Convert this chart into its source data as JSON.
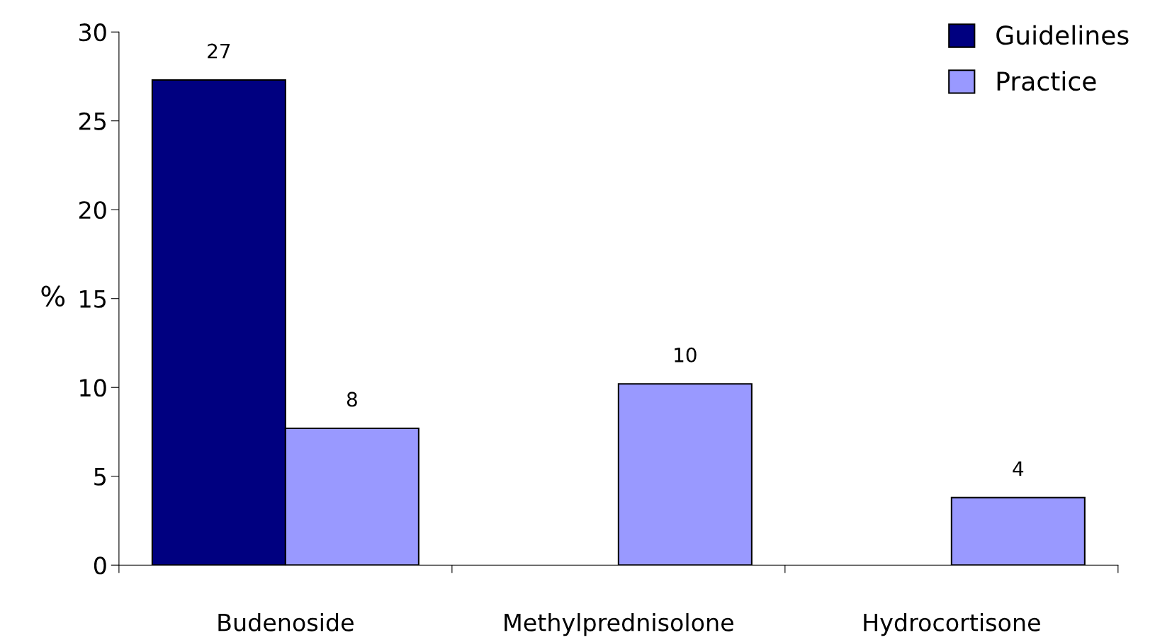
{
  "chart_data": {
    "type": "bar",
    "ylabel": "%",
    "categories": [
      "Budenoside",
      "Methylprednisolone",
      "Hydrocortisone"
    ],
    "series": [
      {
        "name": "Guidelines",
        "color": "#000080",
        "values": [
          27.3,
          null,
          null
        ],
        "value_labels": [
          "27",
          null,
          null
        ]
      },
      {
        "name": "Practice",
        "color": "#9999ff",
        "values": [
          7.7,
          10.2,
          3.8
        ],
        "value_labels": [
          "8",
          "10",
          "4"
        ]
      }
    ],
    "ylim": [
      0,
      30
    ],
    "yticks": [
      0,
      5,
      10,
      15,
      20,
      25,
      30
    ],
    "grid": false,
    "legend": "top right"
  }
}
